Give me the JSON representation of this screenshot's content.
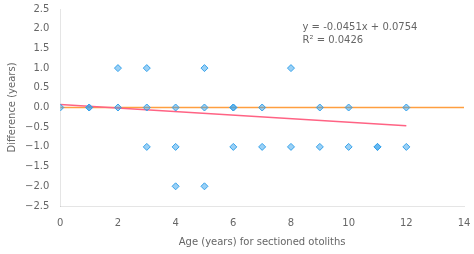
{
  "chart_data": {
    "type": "scatter",
    "xlabel": "Age (years) for sectioned otoliths",
    "ylabel": "Difference (years)",
    "xlim": [
      0,
      14
    ],
    "ylim": [
      -2.5,
      2.5
    ],
    "xticks": [
      0,
      2,
      4,
      6,
      8,
      10,
      12,
      14
    ],
    "yticks": [
      {
        "value": -2.5,
        "label": "−2.5"
      },
      {
        "value": -2,
        "label": "−2.0"
      },
      {
        "value": -1.5,
        "label": "−1.5"
      },
      {
        "value": -1,
        "label": "−1.0"
      },
      {
        "value": -0.5,
        "label": "−0.5"
      },
      {
        "value": 0,
        "label": "0.0"
      },
      {
        "value": 0.5,
        "label": "0.5"
      },
      {
        "value": 1,
        "label": "1.0"
      },
      {
        "value": 1.5,
        "label": "1.5"
      },
      {
        "value": 2,
        "label": "2.0"
      },
      {
        "value": 2.5,
        "label": "2.5"
      }
    ],
    "grid": false,
    "annotation": [
      "y = -0.0451x + 0.0754",
      "R² = 0.0426"
    ],
    "series": [
      {
        "type": "scatter",
        "marker": "diamond",
        "x": [
          0,
          1,
          1,
          2,
          2,
          3,
          3,
          3,
          4,
          4,
          4,
          5,
          5,
          5,
          6,
          6,
          6,
          7,
          7,
          8,
          8,
          9,
          9,
          10,
          10,
          11,
          11,
          12,
          12
        ],
        "values": [
          0,
          0,
          0,
          1,
          0,
          1,
          0,
          -1,
          0,
          -1,
          -2,
          1,
          0,
          -2,
          0,
          -1,
          0,
          0,
          -1,
          1,
          -1,
          0,
          -1,
          -1,
          0,
          -1,
          -1,
          0,
          -1
        ]
      },
      {
        "type": "line",
        "x": [
          0,
          12
        ],
        "values": [
          0.0754,
          -0.4658
        ]
      },
      {
        "type": "line",
        "x": [
          0,
          14
        ],
        "values": [
          0,
          0
        ]
      }
    ]
  }
}
